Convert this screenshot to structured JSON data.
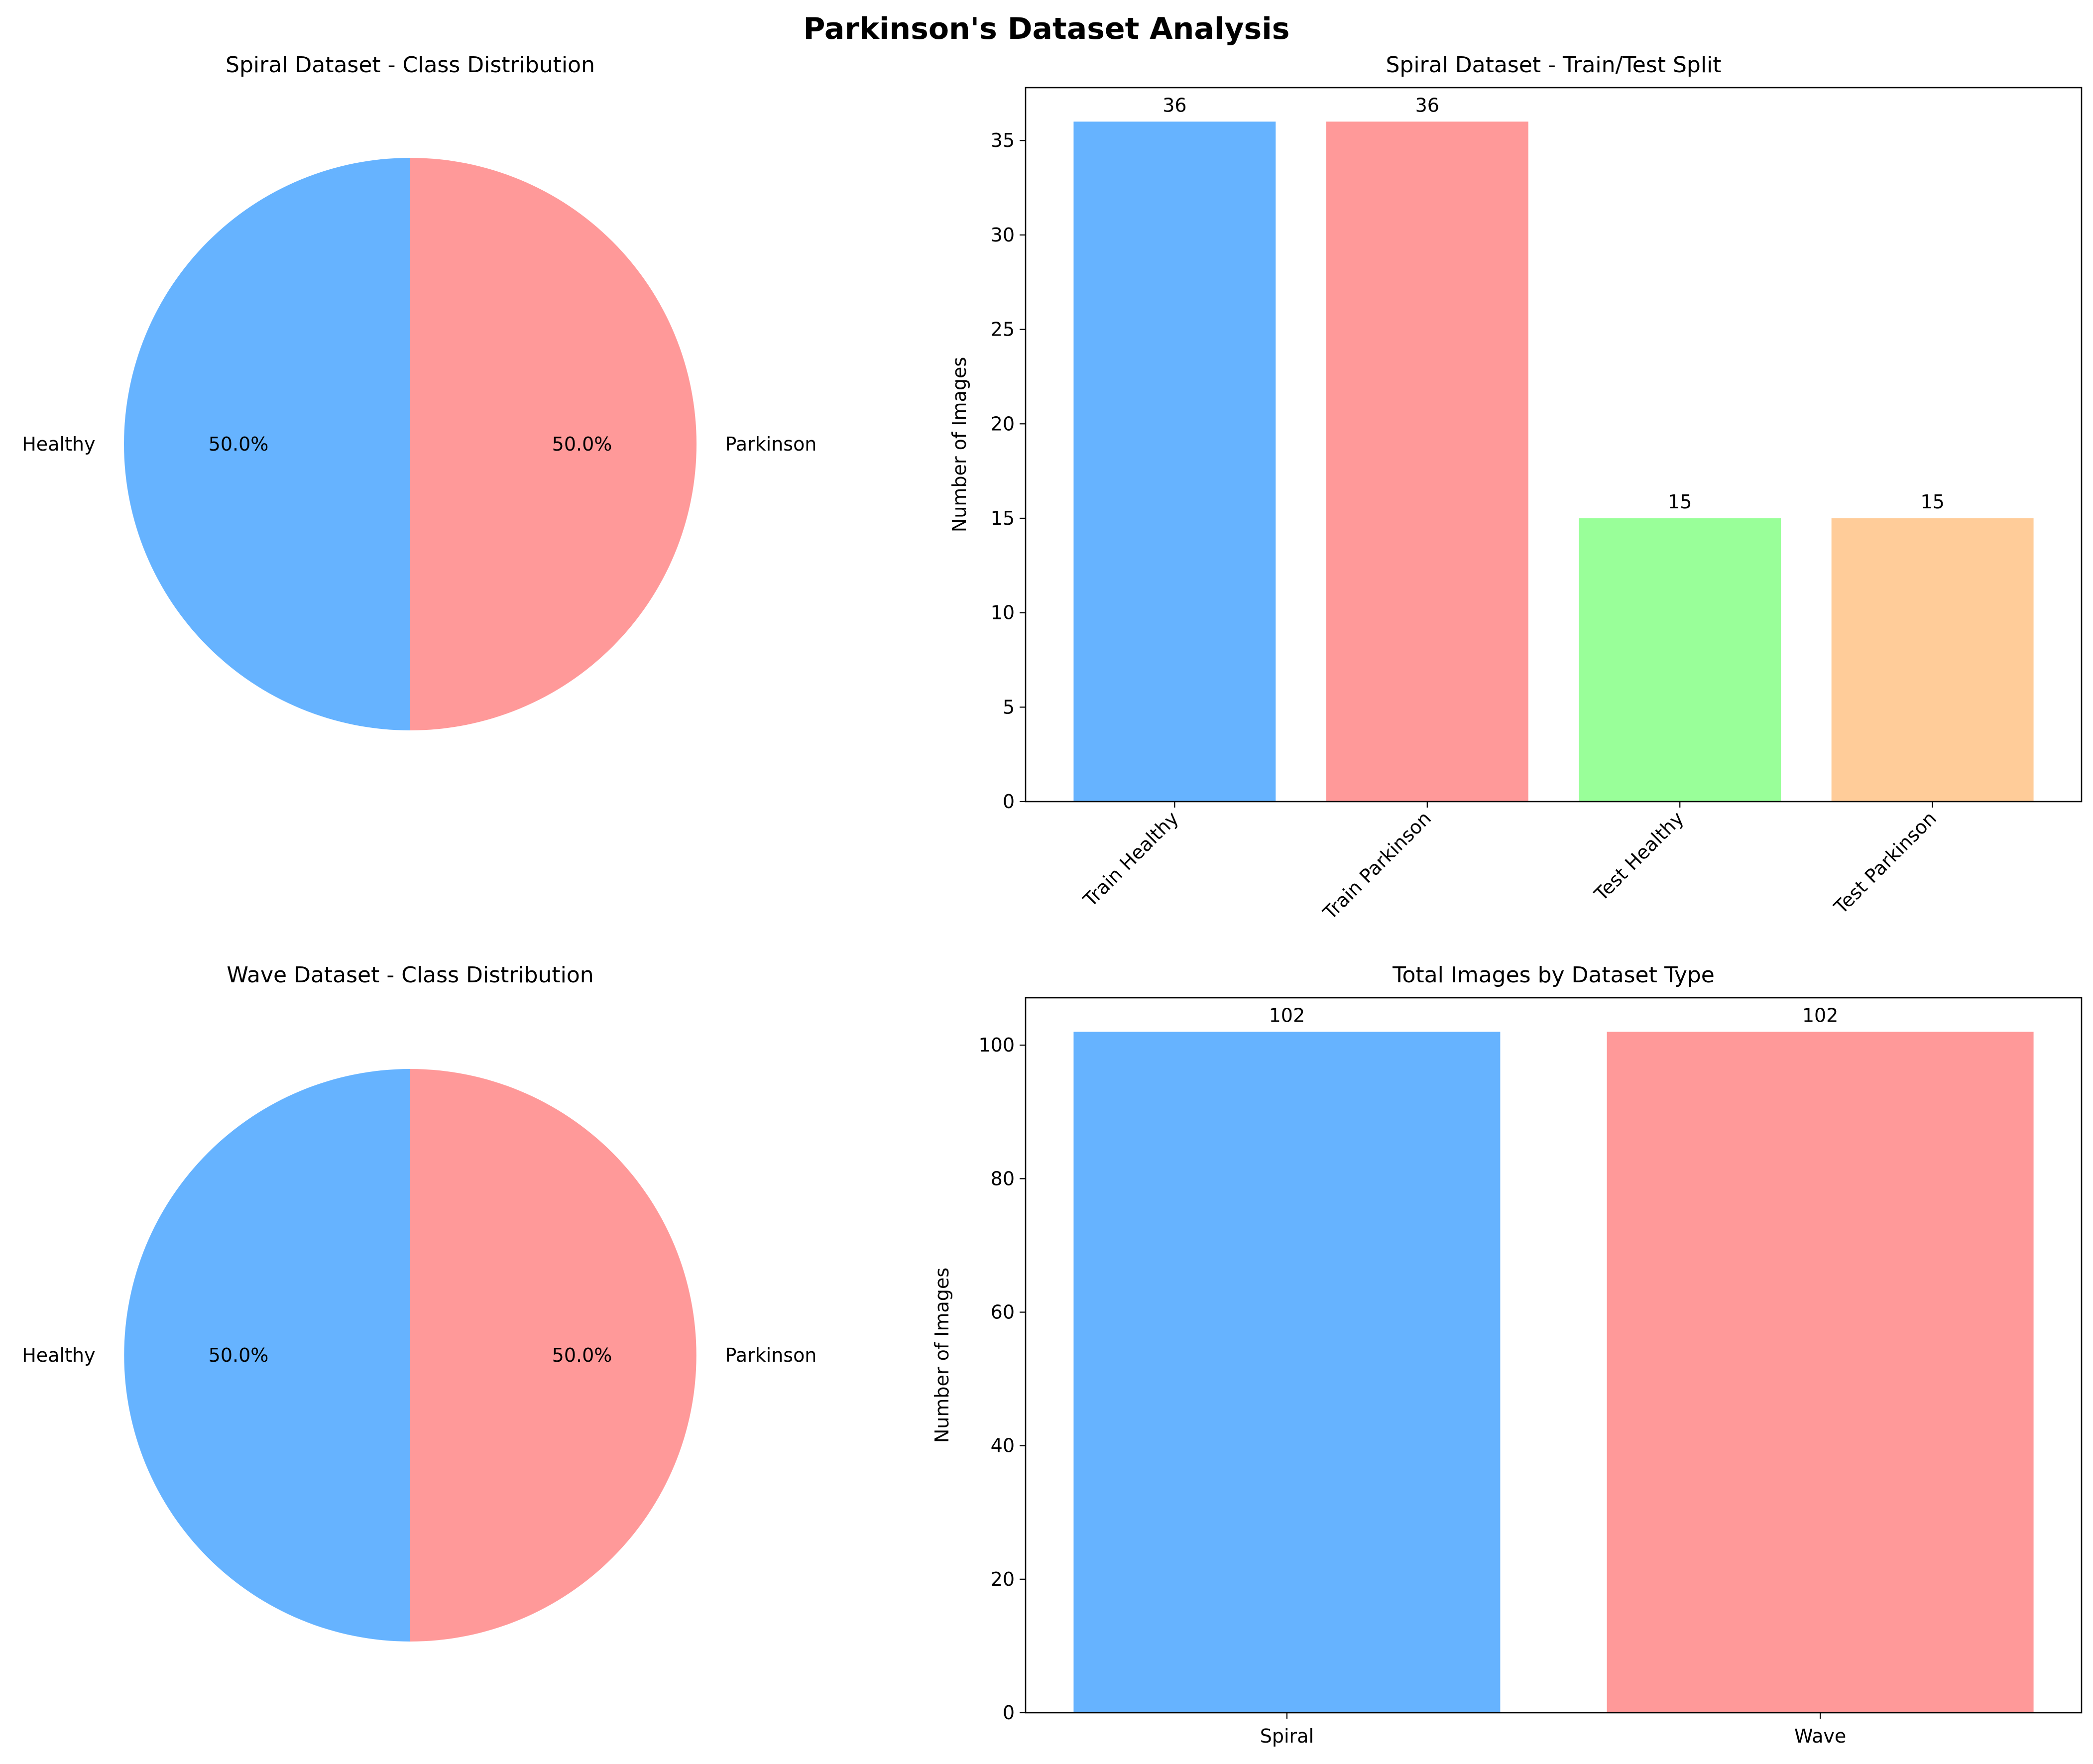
{
  "title": "Parkinson's Dataset Analysis",
  "chart_data": [
    {
      "type": "pie",
      "title": "Spiral Dataset - Class Distribution",
      "labels": [
        "Healthy",
        "Parkinson"
      ],
      "values": [
        50.0,
        50.0
      ],
      "percent_labels": [
        "50.0%",
        "50.0%"
      ],
      "colors": [
        "#66b3ff",
        "#ff9999"
      ],
      "start_angle": 90
    },
    {
      "type": "bar",
      "title": "Spiral Dataset - Train/Test Split",
      "categories": [
        "Train Healthy",
        "Train Parkinson",
        "Test Healthy",
        "Test Parkinson"
      ],
      "values": [
        36,
        36,
        15,
        15
      ],
      "colors": [
        "#66b3ff",
        "#ff9999",
        "#99ff99",
        "#ffcc99"
      ],
      "xlabel": "",
      "ylabel": "Number of Images",
      "ylim": [
        0,
        37.8
      ],
      "yticks": [
        0,
        5,
        10,
        15,
        20,
        25,
        30,
        35
      ],
      "xtick_rotation": 45,
      "grid": false
    },
    {
      "type": "pie",
      "title": "Wave Dataset - Class Distribution",
      "labels": [
        "Healthy",
        "Parkinson"
      ],
      "values": [
        50.0,
        50.0
      ],
      "percent_labels": [
        "50.0%",
        "50.0%"
      ],
      "colors": [
        "#66b3ff",
        "#ff9999"
      ],
      "start_angle": 90
    },
    {
      "type": "bar",
      "title": "Total Images by Dataset Type",
      "categories": [
        "Spiral",
        "Wave"
      ],
      "values": [
        102,
        102
      ],
      "colors": [
        "#66b3ff",
        "#ff9999"
      ],
      "xlabel": "",
      "ylabel": "Number of Images",
      "ylim": [
        0,
        107.1
      ],
      "yticks": [
        0,
        20,
        40,
        60,
        80,
        100
      ],
      "xtick_rotation": 0,
      "grid": false
    }
  ]
}
